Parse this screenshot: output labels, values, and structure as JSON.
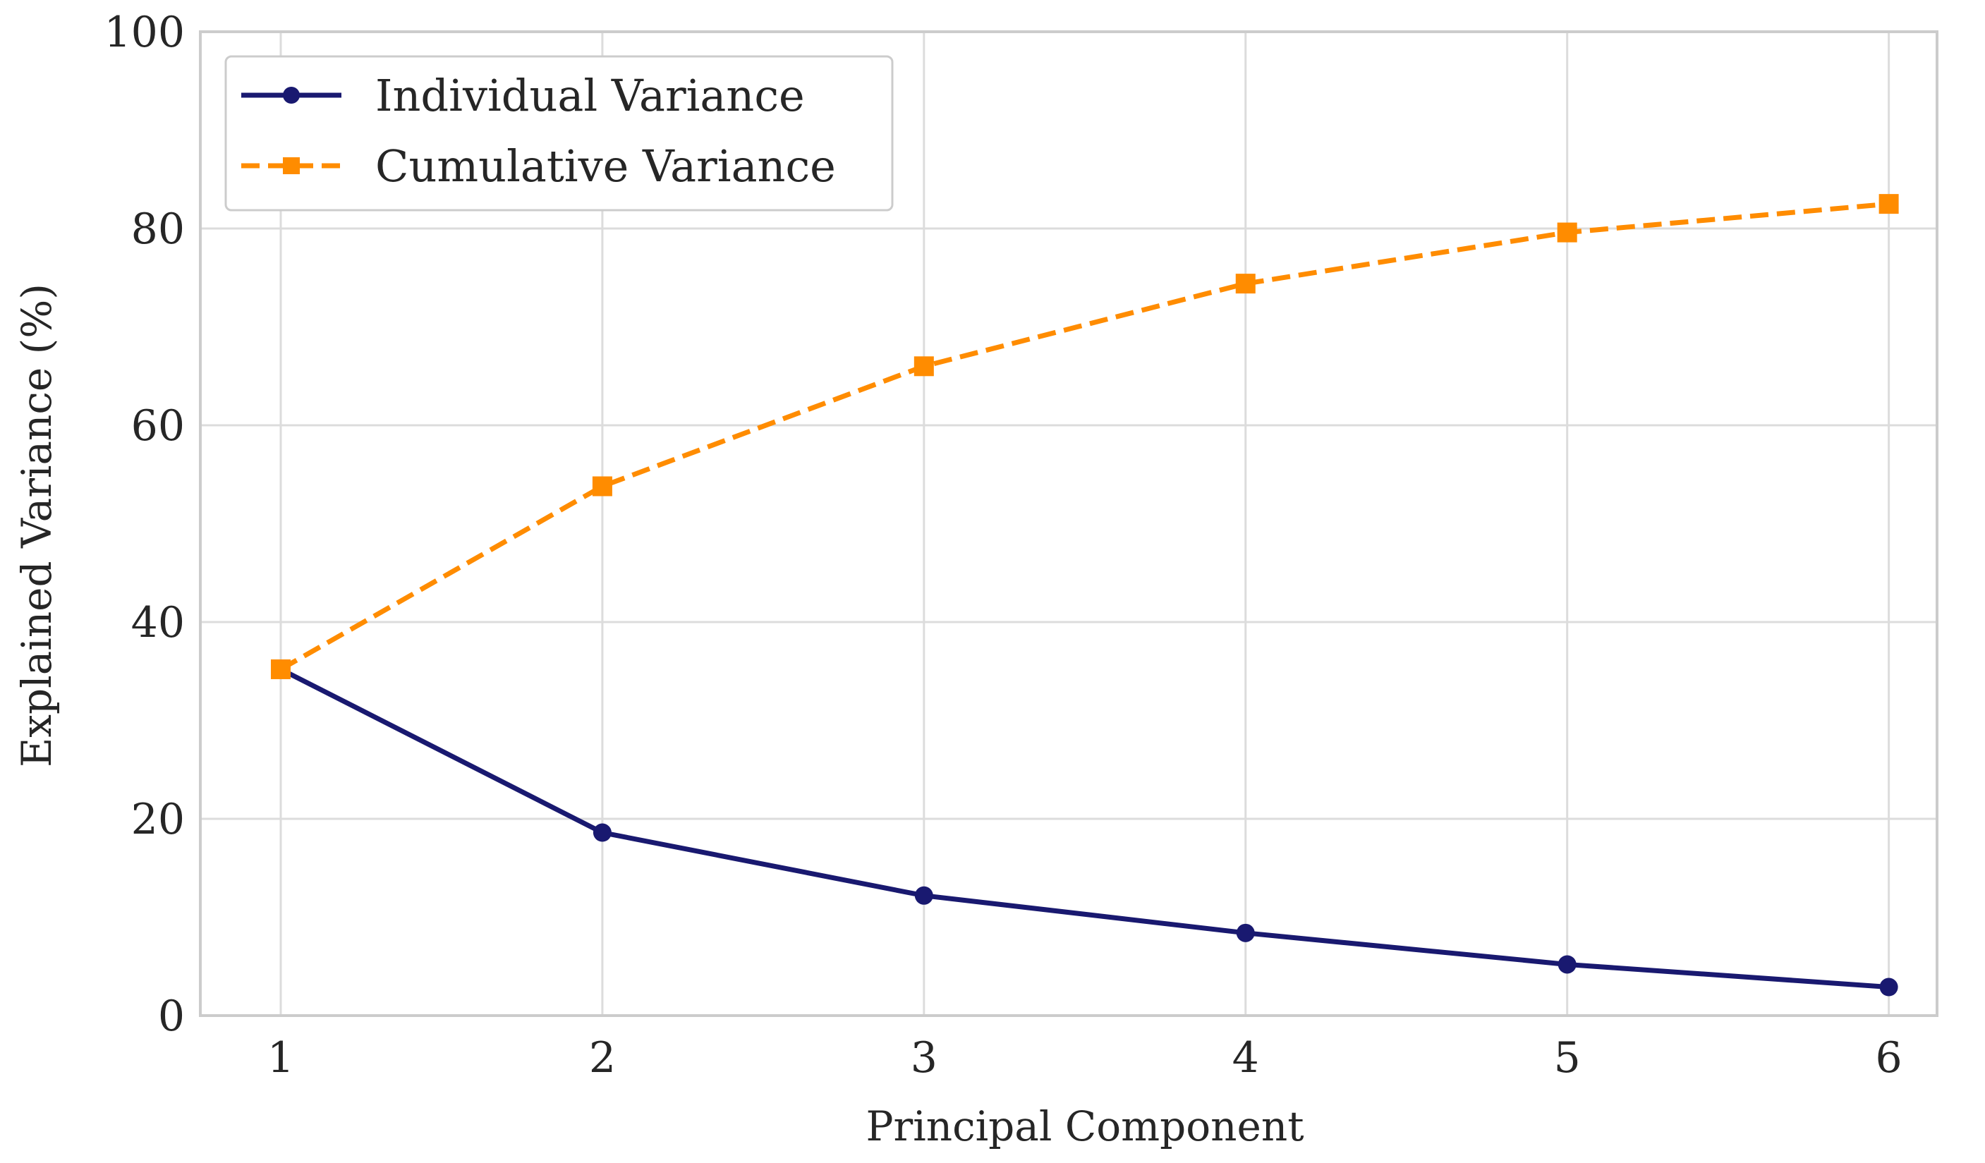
{
  "chart_data": {
    "type": "line",
    "title": "",
    "xlabel": "Principal Component",
    "ylabel": "Explained Variance (%)",
    "x": [
      1,
      2,
      3,
      4,
      5,
      6
    ],
    "xticks": [
      "1",
      "2",
      "3",
      "4",
      "5",
      "6"
    ],
    "yticks": [
      "0",
      "20",
      "40",
      "60",
      "80",
      "100"
    ],
    "xlim": [
      0.75,
      6.15
    ],
    "ylim": [
      0,
      100
    ],
    "grid": true,
    "legend_position": "top-left",
    "series": [
      {
        "name": "Individual Variance",
        "values": [
          35.2,
          18.6,
          12.2,
          8.4,
          5.2,
          2.9
        ],
        "color": "#191970",
        "linestyle": "solid",
        "marker": "circle"
      },
      {
        "name": "Cumulative Variance",
        "values": [
          35.2,
          53.8,
          66.0,
          74.4,
          79.6,
          82.5
        ],
        "color": "#FF8C00",
        "linestyle": "dashed",
        "marker": "square"
      }
    ]
  }
}
